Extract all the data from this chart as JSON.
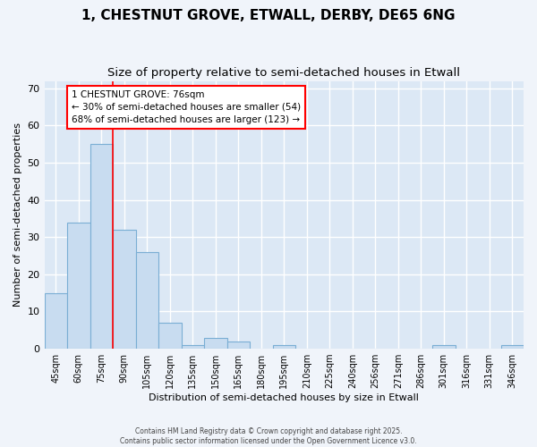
{
  "title": "1, CHESTNUT GROVE, ETWALL, DERBY, DE65 6NG",
  "subtitle": "Size of property relative to semi-detached houses in Etwall",
  "xlabel": "Distribution of semi-detached houses by size in Etwall",
  "ylabel": "Number of semi-detached properties",
  "categories": [
    "45sqm",
    "60sqm",
    "75sqm",
    "90sqm",
    "105sqm",
    "120sqm",
    "135sqm",
    "150sqm",
    "165sqm",
    "180sqm",
    "195sqm",
    "210sqm",
    "225sqm",
    "240sqm",
    "256sqm",
    "271sqm",
    "286sqm",
    "301sqm",
    "316sqm",
    "331sqm",
    "346sqm"
  ],
  "values": [
    15,
    34,
    55,
    32,
    26,
    7,
    1,
    3,
    2,
    0,
    1,
    0,
    0,
    0,
    0,
    0,
    0,
    1,
    0,
    0,
    1
  ],
  "bar_color": "#c8dcf0",
  "bar_edge_color": "#7aaed4",
  "red_line_label": "1 CHESTNUT GROVE: 76sqm",
  "annotation_line1": "← 30% of semi-detached houses are smaller (54)",
  "annotation_line2": "68% of semi-detached houses are larger (123) →",
  "ylim": [
    0,
    72
  ],
  "yticks": [
    0,
    10,
    20,
    30,
    40,
    50,
    60,
    70
  ],
  "footer1": "Contains HM Land Registry data © Crown copyright and database right 2025.",
  "footer2": "Contains public sector information licensed under the Open Government Licence v3.0.",
  "fig_bg_color": "#f0f4fa",
  "plot_bg_color": "#dce8f5",
  "grid_color": "#ffffff",
  "title_fontsize": 11,
  "subtitle_fontsize": 9.5,
  "annotation_fontsize": 7.5
}
